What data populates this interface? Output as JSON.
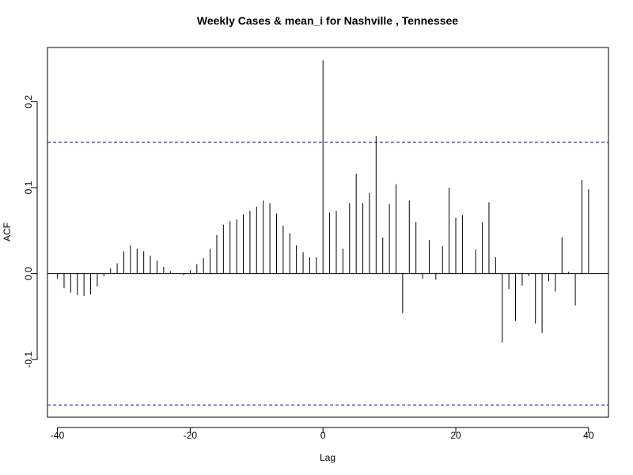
{
  "chart_data": {
    "type": "bar",
    "title": "Weekly Cases & mean_i for Nashville , Tennessee",
    "xlabel": "Lag",
    "ylabel": "ACF",
    "xlim": [
      -41.5,
      43
    ],
    "ylim": [
      -0.167,
      0.263
    ],
    "x_ticks": [
      -40,
      -20,
      0,
      20,
      40
    ],
    "x_tick_labels": [
      "-40",
      "-20",
      "0",
      "20",
      "40"
    ],
    "y_ticks": [
      -0.1,
      0.0,
      0.1,
      0.2
    ],
    "y_tick_labels": [
      "-0.1",
      "0.0",
      "0.1",
      "0.2"
    ],
    "confidence_bound": 0.153,
    "grid": false,
    "colors": {
      "bars": "#000000",
      "bounds": "#00008B",
      "zero_line": "#000000"
    },
    "lags": [
      -40,
      -39,
      -38,
      -37,
      -36,
      -35,
      -34,
      -33,
      -32,
      -31,
      -30,
      -29,
      -28,
      -27,
      -26,
      -25,
      -24,
      -23,
      -22,
      -21,
      -20,
      -19,
      -18,
      -17,
      -16,
      -15,
      -14,
      -13,
      -12,
      -11,
      -10,
      -9,
      -8,
      -7,
      -6,
      -5,
      -4,
      -3,
      -2,
      -1,
      0,
      1,
      2,
      3,
      4,
      5,
      6,
      7,
      8,
      9,
      10,
      11,
      12,
      13,
      14,
      15,
      16,
      17,
      18,
      19,
      20,
      21,
      22,
      23,
      24,
      25,
      26,
      27,
      28,
      29,
      30,
      31,
      32,
      33,
      34,
      35,
      36,
      37,
      38,
      39,
      40
    ],
    "values": [
      -0.006,
      -0.017,
      -0.022,
      -0.025,
      -0.026,
      -0.024,
      -0.015,
      -0.003,
      0.006,
      0.012,
      0.026,
      0.033,
      0.029,
      0.026,
      0.021,
      0.015,
      0.008,
      0.003,
      0.0,
      -0.002,
      0.004,
      0.011,
      0.018,
      0.029,
      0.045,
      0.057,
      0.061,
      0.063,
      0.069,
      0.073,
      0.078,
      0.085,
      0.082,
      0.07,
      0.056,
      0.047,
      0.033,
      0.025,
      0.019,
      0.019,
      0.248,
      0.071,
      0.073,
      0.029,
      0.082,
      0.116,
      0.082,
      0.094,
      0.16,
      0.042,
      0.081,
      0.104,
      -0.046,
      0.085,
      0.06,
      -0.006,
      0.039,
      -0.007,
      0.032,
      0.1,
      0.065,
      0.068,
      0.0,
      0.028,
      0.06,
      0.083,
      0.019,
      -0.08,
      -0.018,
      -0.055,
      -0.014,
      -0.003,
      -0.058,
      -0.069,
      -0.009,
      -0.021,
      0.042,
      0.002,
      -0.037,
      0.109,
      0.098
    ]
  }
}
